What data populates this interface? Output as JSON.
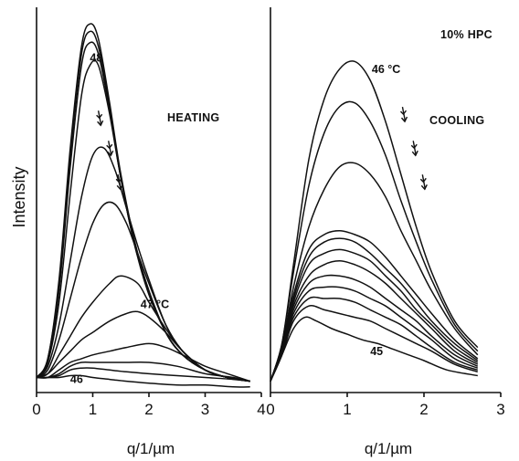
{
  "chart_data": [
    {
      "type": "line",
      "panel": "left",
      "xlabel": "q/1/µm",
      "ylabel": "Intensity",
      "xlim": [
        0,
        4
      ],
      "xticks": [
        "0",
        "1",
        "2",
        "3",
        "4"
      ],
      "annotation": "HEATING",
      "labels": [
        {
          "text": "48",
          "x": 0.95,
          "y": 0.88
        },
        {
          "text": "47 °C",
          "x": 1.85,
          "y": 0.225
        },
        {
          "text": "46",
          "x": 0.6,
          "y": 0.025
        }
      ],
      "arrows": [
        {
          "x": 1.1,
          "y": 0.73
        },
        {
          "x": 1.28,
          "y": 0.65
        },
        {
          "x": 1.45,
          "y": 0.56
        }
      ],
      "series": [
        {
          "x": [
            0,
            0.2,
            0.4,
            0.6,
            0.8,
            0.95,
            1.1,
            1.3,
            1.5,
            1.75,
            2.0,
            2.3,
            2.6,
            3.0,
            3.4,
            3.8
          ],
          "y": [
            0.04,
            0.09,
            0.3,
            0.65,
            0.92,
            0.98,
            0.94,
            0.77,
            0.58,
            0.4,
            0.27,
            0.16,
            0.1,
            0.06,
            0.04,
            0.03
          ]
        },
        {
          "x": [
            0,
            0.2,
            0.4,
            0.6,
            0.8,
            0.95,
            1.1,
            1.3,
            1.5,
            1.75,
            2.0,
            2.3,
            2.6,
            3.0,
            3.4,
            3.8
          ],
          "y": [
            0.04,
            0.09,
            0.29,
            0.63,
            0.9,
            0.96,
            0.92,
            0.76,
            0.57,
            0.39,
            0.27,
            0.16,
            0.1,
            0.06,
            0.04,
            0.03
          ]
        },
        {
          "x": [
            0,
            0.2,
            0.4,
            0.6,
            0.8,
            0.95,
            1.1,
            1.3,
            1.5,
            1.75,
            2.0,
            2.3,
            2.6,
            3.0,
            3.4,
            3.8
          ],
          "y": [
            0.04,
            0.08,
            0.27,
            0.6,
            0.87,
            0.93,
            0.9,
            0.75,
            0.57,
            0.39,
            0.27,
            0.16,
            0.1,
            0.06,
            0.04,
            0.03
          ]
        },
        {
          "x": [
            0,
            0.2,
            0.4,
            0.6,
            0.8,
            0.95,
            1.1,
            1.3,
            1.5,
            1.75,
            2.0,
            2.3,
            2.6,
            3.0,
            3.4,
            3.8
          ],
          "y": [
            0.04,
            0.08,
            0.24,
            0.53,
            0.79,
            0.87,
            0.87,
            0.74,
            0.57,
            0.39,
            0.26,
            0.16,
            0.1,
            0.06,
            0.04,
            0.03
          ]
        },
        {
          "x": [
            0,
            0.2,
            0.4,
            0.6,
            0.8,
            1.0,
            1.2,
            1.4,
            1.6,
            1.8,
            2.0,
            2.3,
            2.6,
            3.0,
            3.4,
            3.8
          ],
          "y": [
            0.04,
            0.07,
            0.18,
            0.35,
            0.52,
            0.63,
            0.65,
            0.59,
            0.49,
            0.39,
            0.3,
            0.18,
            0.11,
            0.06,
            0.04,
            0.03
          ]
        },
        {
          "x": [
            0,
            0.2,
            0.4,
            0.6,
            0.8,
            1.0,
            1.2,
            1.4,
            1.6,
            1.8,
            2.0,
            2.3,
            2.6,
            3.0,
            3.4,
            3.8
          ],
          "y": [
            0.04,
            0.06,
            0.14,
            0.25,
            0.36,
            0.45,
            0.5,
            0.5,
            0.45,
            0.37,
            0.29,
            0.18,
            0.11,
            0.06,
            0.04,
            0.03
          ]
        },
        {
          "x": [
            0,
            0.2,
            0.4,
            0.6,
            0.8,
            1.0,
            1.3,
            1.5,
            1.8,
            2.0,
            2.3,
            2.6,
            3.0,
            3.4,
            3.8
          ],
          "y": [
            0.04,
            0.05,
            0.1,
            0.15,
            0.2,
            0.24,
            0.29,
            0.31,
            0.29,
            0.24,
            0.17,
            0.11,
            0.06,
            0.04,
            0.03
          ]
        },
        {
          "x": [
            0,
            0.2,
            0.4,
            0.6,
            0.8,
            1.0,
            1.3,
            1.6,
            1.8,
            2.0,
            2.3,
            2.6,
            3.0,
            3.4,
            3.8
          ],
          "y": [
            0.04,
            0.05,
            0.08,
            0.11,
            0.14,
            0.16,
            0.19,
            0.21,
            0.215,
            0.2,
            0.16,
            0.11,
            0.06,
            0.04,
            0.03
          ]
        },
        {
          "x": [
            0,
            0.2,
            0.4,
            0.6,
            0.8,
            1.0,
            1.3,
            1.6,
            2.0,
            2.3,
            2.6,
            3.0,
            3.4,
            3.8
          ],
          "y": [
            0.04,
            0.04,
            0.06,
            0.08,
            0.09,
            0.1,
            0.11,
            0.12,
            0.13,
            0.12,
            0.1,
            0.07,
            0.05,
            0.03
          ]
        },
        {
          "x": [
            0,
            0.2,
            0.4,
            0.6,
            0.8,
            1.0,
            1.3,
            1.6,
            2.0,
            2.5,
            3.0,
            3.5,
            3.8
          ],
          "y": [
            0.04,
            0.04,
            0.05,
            0.07,
            0.08,
            0.08,
            0.08,
            0.08,
            0.08,
            0.07,
            0.05,
            0.04,
            0.03
          ]
        },
        {
          "x": [
            0,
            0.2,
            0.4,
            0.6,
            0.8,
            1.0,
            1.3,
            1.6,
            2.0,
            2.5,
            3.0,
            3.5,
            3.8
          ],
          "y": [
            0.04,
            0.04,
            0.045,
            0.06,
            0.065,
            0.065,
            0.06,
            0.055,
            0.05,
            0.045,
            0.04,
            0.035,
            0.03
          ]
        },
        {
          "x": [
            0,
            0.2,
            0.4,
            0.6,
            0.8,
            1.0,
            1.3,
            1.6,
            2.0,
            2.5,
            3.0,
            3.5,
            3.8
          ],
          "y": [
            0.04,
            0.04,
            0.04,
            0.045,
            0.045,
            0.04,
            0.035,
            0.03,
            0.025,
            0.02,
            0.02,
            0.015,
            0.015
          ]
        }
      ]
    },
    {
      "type": "line",
      "panel": "right",
      "xlabel": "q/1/µm",
      "xlim": [
        0,
        3
      ],
      "xticks": [
        "0",
        "1",
        "2",
        "3"
      ],
      "title": "10% HPC",
      "annotation": "COOLING",
      "labels": [
        {
          "text": "46 °C",
          "x": 1.32,
          "y": 0.85
        },
        {
          "text": "45",
          "x": 1.3,
          "y": 0.1
        }
      ],
      "arrows": [
        {
          "x": 1.72,
          "y": 0.74
        },
        {
          "x": 1.86,
          "y": 0.65
        },
        {
          "x": 1.98,
          "y": 0.56
        }
      ],
      "series": [
        {
          "x": [
            0,
            0.15,
            0.3,
            0.5,
            0.7,
            0.9,
            1.1,
            1.3,
            1.5,
            1.7,
            1.9,
            2.1,
            2.4,
            2.7
          ],
          "y": [
            0.03,
            0.13,
            0.34,
            0.62,
            0.78,
            0.86,
            0.88,
            0.83,
            0.72,
            0.58,
            0.44,
            0.32,
            0.19,
            0.12
          ]
        },
        {
          "x": [
            0,
            0.15,
            0.3,
            0.5,
            0.7,
            0.9,
            1.1,
            1.3,
            1.5,
            1.7,
            1.9,
            2.1,
            2.4,
            2.7
          ],
          "y": [
            0.03,
            0.13,
            0.32,
            0.55,
            0.69,
            0.76,
            0.77,
            0.72,
            0.63,
            0.51,
            0.4,
            0.3,
            0.18,
            0.11
          ]
        },
        {
          "x": [
            0,
            0.15,
            0.3,
            0.5,
            0.7,
            0.9,
            1.1,
            1.3,
            1.5,
            1.7,
            1.9,
            2.1,
            2.4,
            2.7
          ],
          "y": [
            0.03,
            0.12,
            0.28,
            0.44,
            0.54,
            0.6,
            0.61,
            0.58,
            0.52,
            0.43,
            0.35,
            0.27,
            0.17,
            0.1
          ]
        },
        {
          "x": [
            0,
            0.15,
            0.3,
            0.5,
            0.7,
            0.9,
            1.1,
            1.3,
            1.5,
            1.7,
            1.9,
            2.1,
            2.4,
            2.7
          ],
          "y": [
            0.03,
            0.12,
            0.26,
            0.38,
            0.42,
            0.43,
            0.42,
            0.4,
            0.36,
            0.31,
            0.26,
            0.21,
            0.14,
            0.09
          ]
        },
        {
          "x": [
            0,
            0.15,
            0.3,
            0.5,
            0.7,
            0.9,
            1.1,
            1.3,
            1.5,
            1.7,
            1.9,
            2.1,
            2.4,
            2.7
          ],
          "y": [
            0.03,
            0.12,
            0.25,
            0.36,
            0.4,
            0.41,
            0.4,
            0.37,
            0.33,
            0.29,
            0.24,
            0.19,
            0.13,
            0.085
          ]
        },
        {
          "x": [
            0,
            0.15,
            0.3,
            0.5,
            0.7,
            0.9,
            1.1,
            1.3,
            1.5,
            1.7,
            1.9,
            2.1,
            2.4,
            2.7
          ],
          "y": [
            0.03,
            0.12,
            0.24,
            0.34,
            0.37,
            0.38,
            0.37,
            0.35,
            0.31,
            0.27,
            0.22,
            0.18,
            0.12,
            0.08
          ]
        },
        {
          "x": [
            0,
            0.15,
            0.3,
            0.5,
            0.7,
            0.9,
            1.1,
            1.3,
            1.5,
            1.7,
            1.9,
            2.1,
            2.4,
            2.7
          ],
          "y": [
            0.03,
            0.12,
            0.23,
            0.31,
            0.34,
            0.35,
            0.34,
            0.32,
            0.29,
            0.25,
            0.21,
            0.17,
            0.11,
            0.075
          ]
        },
        {
          "x": [
            0,
            0.15,
            0.3,
            0.5,
            0.7,
            0.9,
            1.1,
            1.3,
            1.5,
            1.7,
            1.9,
            2.1,
            2.4,
            2.7
          ],
          "y": [
            0.03,
            0.11,
            0.22,
            0.29,
            0.31,
            0.31,
            0.3,
            0.28,
            0.25,
            0.22,
            0.19,
            0.15,
            0.1,
            0.07
          ]
        },
        {
          "x": [
            0,
            0.15,
            0.3,
            0.5,
            0.7,
            0.9,
            1.1,
            1.3,
            1.5,
            1.7,
            1.9,
            2.1,
            2.4,
            2.7
          ],
          "y": [
            0.03,
            0.11,
            0.21,
            0.27,
            0.28,
            0.28,
            0.27,
            0.25,
            0.23,
            0.2,
            0.17,
            0.14,
            0.09,
            0.065
          ]
        },
        {
          "x": [
            0,
            0.15,
            0.3,
            0.5,
            0.7,
            0.9,
            1.1,
            1.3,
            1.5,
            1.7,
            1.9,
            2.1,
            2.4,
            2.7
          ],
          "y": [
            0.03,
            0.11,
            0.2,
            0.25,
            0.25,
            0.25,
            0.24,
            0.22,
            0.2,
            0.18,
            0.15,
            0.12,
            0.08,
            0.06
          ]
        },
        {
          "x": [
            0,
            0.15,
            0.3,
            0.5,
            0.7,
            0.9,
            1.1,
            1.3,
            1.5,
            1.7,
            1.9,
            2.1,
            2.4,
            2.7
          ],
          "y": [
            0.03,
            0.1,
            0.19,
            0.23,
            0.22,
            0.21,
            0.2,
            0.19,
            0.17,
            0.15,
            0.13,
            0.11,
            0.075,
            0.055
          ]
        },
        {
          "x": [
            0,
            0.15,
            0.3,
            0.45,
            0.6,
            0.8,
            1.0,
            1.2,
            1.4,
            1.6,
            1.8,
            2.0,
            2.3,
            2.7
          ],
          "y": [
            0.03,
            0.1,
            0.17,
            0.2,
            0.19,
            0.17,
            0.155,
            0.14,
            0.13,
            0.115,
            0.1,
            0.085,
            0.06,
            0.045
          ]
        }
      ]
    }
  ]
}
